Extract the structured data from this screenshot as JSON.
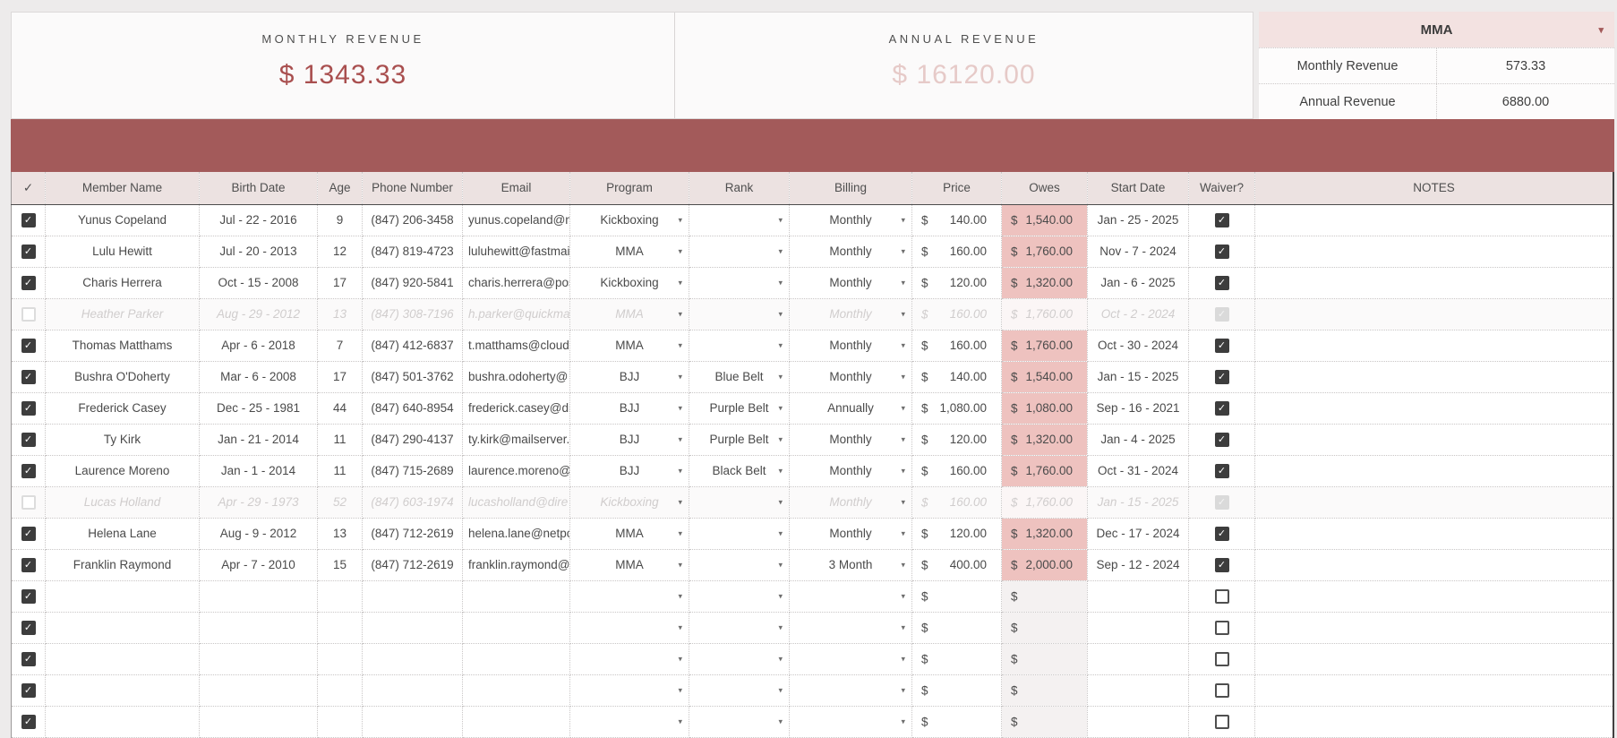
{
  "summary": {
    "monthly": {
      "label": "MONTHLY REVENUE",
      "value": "$ 1343.33"
    },
    "annual": {
      "label": "ANNUAL REVENUE",
      "value": "$ 16120.00"
    }
  },
  "program_panel": {
    "title": "MMA",
    "dropdown_icon": "▾",
    "rows": [
      {
        "label": "Monthly Revenue",
        "value": "573.33"
      },
      {
        "label": "Annual Revenue",
        "value": "6880.00"
      }
    ]
  },
  "table": {
    "headers": [
      "✓",
      "Member Name",
      "Birth Date",
      "Age",
      "Phone Number",
      "Email",
      "Program",
      "Rank",
      "Billing",
      "Price",
      "Owes",
      "Start Date",
      "Waiver?",
      "NOTES"
    ],
    "currency_symbol": "$",
    "dropdown_icon": "▾",
    "check_glyph": "✓",
    "rows": [
      {
        "checked": true,
        "active": true,
        "name": "Yunus Copeland",
        "birth_date": "Jul - 22 - 2016",
        "age": "9",
        "phone": "(847) 206-3458",
        "email": "yunus.copeland@n",
        "program": "Kickboxing",
        "rank": "",
        "billing": "Monthly",
        "price": "140.00",
        "owes": "1,540.00",
        "start_date": "Jan - 25 - 2025",
        "waiver": true,
        "notes": ""
      },
      {
        "checked": true,
        "active": true,
        "name": "Lulu Hewitt",
        "birth_date": "Jul - 20 - 2013",
        "age": "12",
        "phone": "(847) 819-4723",
        "email": "luluhewitt@fastmai",
        "program": "MMA",
        "rank": "",
        "billing": "Monthly",
        "price": "160.00",
        "owes": "1,760.00",
        "start_date": "Nov - 7 - 2024",
        "waiver": true,
        "notes": ""
      },
      {
        "checked": true,
        "active": true,
        "name": "Charis Herrera",
        "birth_date": "Oct - 15 - 2008",
        "age": "17",
        "phone": "(847) 920-5841",
        "email": "charis.herrera@pos",
        "program": "Kickboxing",
        "rank": "",
        "billing": "Monthly",
        "price": "120.00",
        "owes": "1,320.00",
        "start_date": "Jan - 6 - 2025",
        "waiver": true,
        "notes": ""
      },
      {
        "checked": false,
        "active": false,
        "name": "Heather Parker",
        "birth_date": "Aug - 29 - 2012",
        "age": "13",
        "phone": "(847) 308-7196",
        "email": "h.parker@quickma",
        "program": "MMA",
        "rank": "",
        "billing": "Monthly",
        "price": "160.00",
        "owes": "1,760.00",
        "start_date": "Oct - 2 - 2024",
        "waiver": true,
        "notes": ""
      },
      {
        "checked": true,
        "active": true,
        "name": "Thomas Matthams",
        "birth_date": "Apr - 6 - 2018",
        "age": "7",
        "phone": "(847) 412-6837",
        "email": "t.matthams@cloud",
        "program": "MMA",
        "rank": "",
        "billing": "Monthly",
        "price": "160.00",
        "owes": "1,760.00",
        "start_date": "Oct - 30 - 2024",
        "waiver": true,
        "notes": ""
      },
      {
        "checked": true,
        "active": true,
        "name": "Bushra O'Doherty",
        "birth_date": "Mar - 6 - 2008",
        "age": "17",
        "phone": "(847) 501-3762",
        "email": "bushra.odoherty@",
        "program": "BJJ",
        "rank": "Blue Belt",
        "billing": "Monthly",
        "price": "140.00",
        "owes": "1,540.00",
        "start_date": "Jan - 15 - 2025",
        "waiver": true,
        "notes": ""
      },
      {
        "checked": true,
        "active": true,
        "name": "Frederick Casey",
        "birth_date": "Dec - 25 - 1981",
        "age": "44",
        "phone": "(847) 640-8954",
        "email": "frederick.casey@di",
        "program": "BJJ",
        "rank": "Purple Belt",
        "billing": "Annually",
        "price": "1,080.00",
        "owes": "1,080.00",
        "start_date": "Sep - 16 - 2021",
        "waiver": true,
        "notes": ""
      },
      {
        "checked": true,
        "active": true,
        "name": "Ty Kirk",
        "birth_date": "Jan - 21 - 2014",
        "age": "11",
        "phone": "(847) 290-4137",
        "email": "ty.kirk@mailserver.i",
        "program": "BJJ",
        "rank": "Purple Belt",
        "billing": "Monthly",
        "price": "120.00",
        "owes": "1,320.00",
        "start_date": "Jan - 4 - 2025",
        "waiver": true,
        "notes": ""
      },
      {
        "checked": true,
        "active": true,
        "name": "Laurence Moreno",
        "birth_date": "Jan - 1 - 2014",
        "age": "11",
        "phone": "(847) 715-2689",
        "email": "laurence.moreno@",
        "program": "BJJ",
        "rank": "Black Belt",
        "billing": "Monthly",
        "price": "160.00",
        "owes": "1,760.00",
        "start_date": "Oct - 31 - 2024",
        "waiver": true,
        "notes": ""
      },
      {
        "checked": false,
        "active": false,
        "name": "Lucas Holland",
        "birth_date": "Apr - 29 - 1973",
        "age": "52",
        "phone": "(847) 603-1974",
        "email": "lucasholland@dire",
        "program": "Kickboxing",
        "rank": "",
        "billing": "Monthly",
        "price": "160.00",
        "owes": "1,760.00",
        "start_date": "Jan - 15 - 2025",
        "waiver": true,
        "notes": ""
      },
      {
        "checked": true,
        "active": true,
        "name": "Helena Lane",
        "birth_date": "Aug - 9 - 2012",
        "age": "13",
        "phone": "(847) 712-2619",
        "email": "helena.lane@netpo",
        "program": "MMA",
        "rank": "",
        "billing": "Monthly",
        "price": "120.00",
        "owes": "1,320.00",
        "start_date": "Dec - 17 - 2024",
        "waiver": true,
        "notes": ""
      },
      {
        "checked": true,
        "active": true,
        "name": "Franklin Raymond",
        "birth_date": "Apr - 7 - 2010",
        "age": "15",
        "phone": "(847) 712-2619",
        "email": "franklin.raymond@",
        "program": "MMA",
        "rank": "",
        "billing": "3 Month",
        "price": "400.00",
        "owes": "2,000.00",
        "start_date": "Sep - 12 - 2024",
        "waiver": true,
        "notes": ""
      }
    ],
    "empty_rows": 5
  },
  "colors": {
    "band": "#a35a5a",
    "accent-dark": "#a94f4f",
    "accent-faded": "#e6cac8",
    "owes-bg": "#eec2bf",
    "header-bg": "#ece2e1",
    "panel-header-bg": "#f3e2e1",
    "page-bg": "#edebeb",
    "card-bg": "#fbfafa",
    "text": "#4a4a4a",
    "inactive-text": "#d0cdcd"
  }
}
